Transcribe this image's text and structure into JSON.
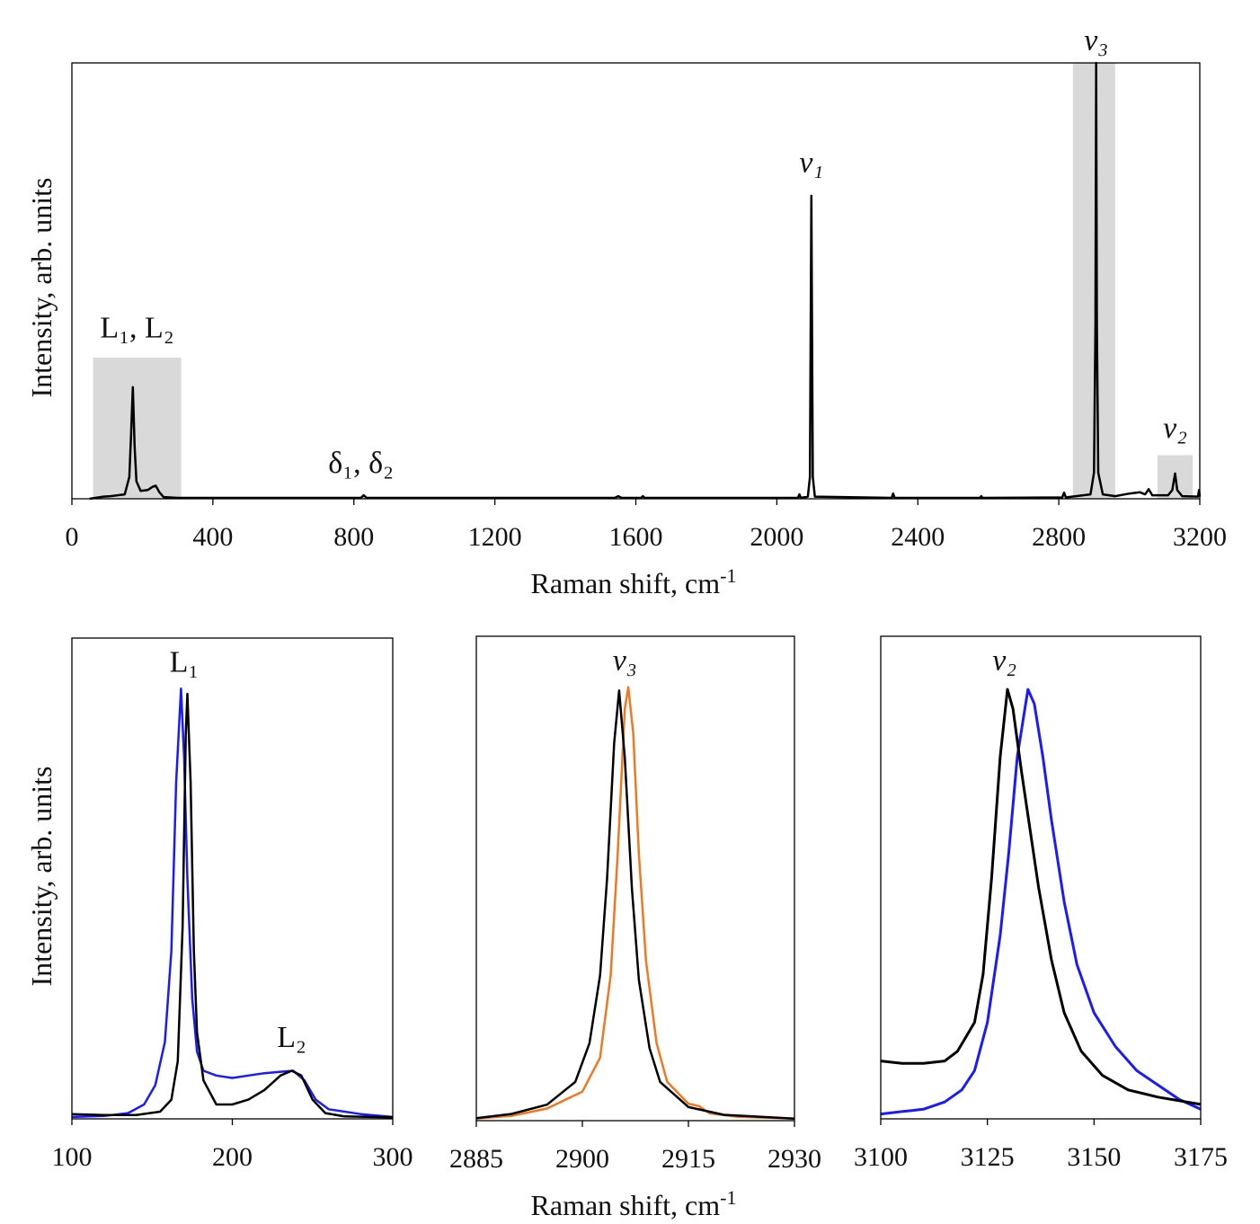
{
  "chart_data": [
    {
      "type": "line",
      "xlabel": "Raman shift, cm",
      "xlabel_sup": "-1",
      "ylabel": "Intensity, arb. units",
      "xlim": [
        0,
        3200
      ],
      "ylim": [
        0,
        1
      ],
      "xticks": [
        0,
        400,
        800,
        1200,
        1600,
        2000,
        2400,
        2800,
        3200
      ],
      "grid": false,
      "shaded_regions": [
        {
          "x": [
            60,
            310
          ],
          "ymax": 0.324
        },
        {
          "x": [
            2840,
            2960
          ],
          "ymax": 1.0
        },
        {
          "x": [
            3080,
            3180
          ],
          "ymax": 0.1
        }
      ],
      "annotations": [
        {
          "text": "L₁, L₂",
          "x": 185,
          "y": 0.37
        },
        {
          "text": "δ₁, δ₂",
          "x": 820,
          "y": 0.06
        },
        {
          "text": "ν₁",
          "x": 2098,
          "y": 0.75,
          "italic": true
        },
        {
          "text": "ν₃",
          "x": 2906,
          "y": 1.03,
          "italic": true
        },
        {
          "text": "ν₂",
          "x": 3130,
          "y": 0.14,
          "italic": true
        }
      ],
      "series": [
        {
          "color": "#000000",
          "points": [
            [
              50,
              0.0
            ],
            [
              90,
              0.005
            ],
            [
              110,
              0.006
            ],
            [
              150,
              0.01
            ],
            [
              163,
              0.05
            ],
            [
              168,
              0.15
            ],
            [
              173,
              0.256
            ],
            [
              178,
              0.12
            ],
            [
              183,
              0.04
            ],
            [
              195,
              0.018
            ],
            [
              215,
              0.02
            ],
            [
              230,
              0.028
            ],
            [
              238,
              0.03
            ],
            [
              248,
              0.015
            ],
            [
              260,
              0.004
            ],
            [
              300,
              0.002
            ],
            [
              820,
              0.002
            ],
            [
              828,
              0.008
            ],
            [
              836,
              0.002
            ],
            [
              1540,
              0.002
            ],
            [
              1550,
              0.006
            ],
            [
              1560,
              0.002
            ],
            [
              1615,
              0.002
            ],
            [
              1620,
              0.006
            ],
            [
              1625,
              0.002
            ],
            [
              2060,
              0.002
            ],
            [
              2064,
              0.01
            ],
            [
              2068,
              0.002
            ],
            [
              2088,
              0.005
            ],
            [
              2094,
              0.05
            ],
            [
              2098,
              0.695
            ],
            [
              2102,
              0.05
            ],
            [
              2108,
              0.005
            ],
            [
              2326,
              0.002
            ],
            [
              2330,
              0.012
            ],
            [
              2334,
              0.002
            ],
            [
              2576,
              0.002
            ],
            [
              2580,
              0.006
            ],
            [
              2584,
              0.002
            ],
            [
              2810,
              0.003
            ],
            [
              2815,
              0.014
            ],
            [
              2820,
              0.003
            ],
            [
              2890,
              0.01
            ],
            [
              2900,
              0.06
            ],
            [
              2904,
              0.4
            ],
            [
              2906,
              1.0
            ],
            [
              2908,
              0.4
            ],
            [
              2912,
              0.06
            ],
            [
              2925,
              0.01
            ],
            [
              2960,
              0.006
            ],
            [
              3000,
              0.012
            ],
            [
              3030,
              0.015
            ],
            [
              3045,
              0.01
            ],
            [
              3055,
              0.022
            ],
            [
              3065,
              0.008
            ],
            [
              3110,
              0.008
            ],
            [
              3122,
              0.02
            ],
            [
              3130,
              0.058
            ],
            [
              3136,
              0.02
            ],
            [
              3150,
              0.006
            ],
            [
              3195,
              0.005
            ],
            [
              3198,
              0.02
            ],
            [
              3200,
              0.005
            ]
          ]
        }
      ]
    },
    {
      "type": "line",
      "ylabel": "Intensity, arb. units",
      "xlim": [
        100,
        300
      ],
      "ylim": [
        0,
        1
      ],
      "xticks": [
        100,
        200,
        300
      ],
      "annotations": [
        {
          "text": "L₁",
          "x": 170,
          "y": 0.93
        },
        {
          "text": "L₂",
          "x": 237,
          "y": 0.15
        }
      ],
      "series": [
        {
          "color": "#1a1aff",
          "points": [
            [
              100,
              0.004
            ],
            [
              120,
              0.006
            ],
            [
              135,
              0.012
            ],
            [
              145,
              0.03
            ],
            [
              152,
              0.07
            ],
            [
              158,
              0.16
            ],
            [
              162,
              0.35
            ],
            [
              165,
              0.7
            ],
            [
              168,
              0.895
            ],
            [
              170,
              0.75
            ],
            [
              172,
              0.5
            ],
            [
              175,
              0.25
            ],
            [
              178,
              0.14
            ],
            [
              182,
              0.1
            ],
            [
              190,
              0.09
            ],
            [
              200,
              0.085
            ],
            [
              210,
              0.09
            ],
            [
              220,
              0.095
            ],
            [
              230,
              0.098
            ],
            [
              238,
              0.1
            ],
            [
              245,
              0.08
            ],
            [
              252,
              0.04
            ],
            [
              260,
              0.02
            ],
            [
              280,
              0.01
            ],
            [
              300,
              0.004
            ]
          ]
        },
        {
          "color": "#000000",
          "points": [
            [
              100,
              0.01
            ],
            [
              120,
              0.008
            ],
            [
              140,
              0.008
            ],
            [
              155,
              0.015
            ],
            [
              162,
              0.04
            ],
            [
              166,
              0.12
            ],
            [
              169,
              0.4
            ],
            [
              171,
              0.8
            ],
            [
              172,
              0.884
            ],
            [
              174,
              0.7
            ],
            [
              176,
              0.35
            ],
            [
              178,
              0.18
            ],
            [
              182,
              0.08
            ],
            [
              190,
              0.03
            ],
            [
              200,
              0.03
            ],
            [
              210,
              0.04
            ],
            [
              220,
              0.06
            ],
            [
              230,
              0.09
            ],
            [
              237,
              0.1
            ],
            [
              243,
              0.09
            ],
            [
              250,
              0.04
            ],
            [
              258,
              0.012
            ],
            [
              270,
              0.005
            ],
            [
              300,
              0.003
            ]
          ]
        }
      ]
    },
    {
      "type": "line",
      "xlabel": "Raman shift, cm",
      "xlabel_sup": "-1",
      "xlim": [
        2885,
        2930
      ],
      "ylim": [
        0,
        1
      ],
      "xticks": [
        2885,
        2900,
        2915,
        2930
      ],
      "annotations": [
        {
          "text": "ν₃",
          "x": 2906,
          "y": 0.93,
          "italic": true
        }
      ],
      "series": [
        {
          "color": "#f07820",
          "points": [
            [
              2885,
              0.004
            ],
            [
              2890,
              0.01
            ],
            [
              2895,
              0.025
            ],
            [
              2900,
              0.06
            ],
            [
              2902.5,
              0.13
            ],
            [
              2904,
              0.3
            ],
            [
              2905,
              0.55
            ],
            [
              2906,
              0.85
            ],
            [
              2906.5,
              0.895
            ],
            [
              2907.2,
              0.8
            ],
            [
              2908,
              0.55
            ],
            [
              2909,
              0.33
            ],
            [
              2910.5,
              0.16
            ],
            [
              2912,
              0.08
            ],
            [
              2915,
              0.035
            ],
            [
              2916.5,
              0.03
            ],
            [
              2918,
              0.015
            ],
            [
              2922,
              0.008
            ],
            [
              2930,
              0.004
            ]
          ]
        },
        {
          "color": "#000000",
          "points": [
            [
              2885,
              0.005
            ],
            [
              2890,
              0.014
            ],
            [
              2895,
              0.033
            ],
            [
              2899,
              0.08
            ],
            [
              2901,
              0.16
            ],
            [
              2902.5,
              0.3
            ],
            [
              2903.5,
              0.5
            ],
            [
              2904.5,
              0.78
            ],
            [
              2905.2,
              0.888
            ],
            [
              2906,
              0.75
            ],
            [
              2907,
              0.48
            ],
            [
              2908,
              0.29
            ],
            [
              2909.5,
              0.15
            ],
            [
              2911,
              0.08
            ],
            [
              2915,
              0.028
            ],
            [
              2920,
              0.012
            ],
            [
              2930,
              0.004
            ]
          ]
        }
      ]
    },
    {
      "type": "line",
      "xlim": [
        3100,
        3175
      ],
      "ylim": [
        0,
        1
      ],
      "xticks": [
        3100,
        3125,
        3150,
        3175
      ],
      "annotations": [
        {
          "text": "ν₂",
          "x": 3129,
          "y": 0.93,
          "italic": true
        }
      ],
      "series": [
        {
          "color": "#1a1aff",
          "points": [
            [
              3100,
              0.01
            ],
            [
              3105,
              0.015
            ],
            [
              3110,
              0.02
            ],
            [
              3115,
              0.035
            ],
            [
              3119,
              0.06
            ],
            [
              3122,
              0.1
            ],
            [
              3125,
              0.2
            ],
            [
              3128,
              0.38
            ],
            [
              3130,
              0.55
            ],
            [
              3132,
              0.75
            ],
            [
              3134.5,
              0.89
            ],
            [
              3136,
              0.86
            ],
            [
              3138,
              0.75
            ],
            [
              3140,
              0.62
            ],
            [
              3143,
              0.45
            ],
            [
              3146,
              0.32
            ],
            [
              3150,
              0.22
            ],
            [
              3155,
              0.15
            ],
            [
              3160,
              0.1
            ],
            [
              3165,
              0.07
            ],
            [
              3170,
              0.04
            ],
            [
              3175,
              0.02
            ]
          ]
        },
        {
          "color": "#000000",
          "points": [
            [
              3100,
              0.12
            ],
            [
              3105,
              0.115
            ],
            [
              3110,
              0.115
            ],
            [
              3115,
              0.12
            ],
            [
              3118,
              0.14
            ],
            [
              3120,
              0.17
            ],
            [
              3122,
              0.2
            ],
            [
              3124,
              0.3
            ],
            [
              3126,
              0.5
            ],
            [
              3128,
              0.75
            ],
            [
              3129.7,
              0.89
            ],
            [
              3131,
              0.85
            ],
            [
              3133,
              0.72
            ],
            [
              3135,
              0.6
            ],
            [
              3137,
              0.48
            ],
            [
              3140,
              0.33
            ],
            [
              3143,
              0.22
            ],
            [
              3147,
              0.14
            ],
            [
              3152,
              0.09
            ],
            [
              3158,
              0.06
            ],
            [
              3165,
              0.045
            ],
            [
              3175,
              0.03
            ]
          ]
        }
      ]
    }
  ]
}
